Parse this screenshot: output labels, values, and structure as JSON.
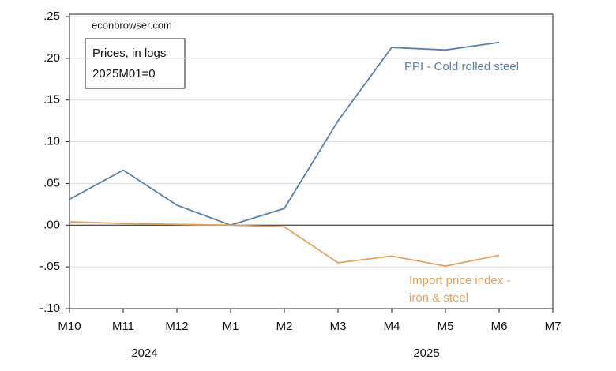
{
  "chart_data": {
    "type": "line",
    "annotations": [
      "econbrowser.com",
      "Prices, in logs",
      "2025M01=0"
    ],
    "categories": [
      "M10",
      "M11",
      "M12",
      "M1",
      "M2",
      "M3",
      "M4",
      "M5",
      "M6",
      "M7"
    ],
    "x_group_labels": [
      "2024",
      "2025"
    ],
    "series": [
      {
        "name": "PPI - Cold rolled steel",
        "color": "#5a7fa8",
        "values": [
          0.031,
          0.066,
          0.024,
          0.0,
          0.02,
          0.125,
          0.213,
          0.21,
          0.219,
          null
        ]
      },
      {
        "name": "Import price index - iron & steel",
        "color": "#e3a15e",
        "values": [
          0.004,
          0.002,
          0.001,
          0.0,
          -0.002,
          -0.045,
          -0.037,
          -0.049,
          -0.036,
          null
        ]
      }
    ],
    "ylim": [
      -0.1,
      0.25
    ],
    "yticks": [
      {
        "value": -0.1,
        "label": "-.10"
      },
      {
        "value": -0.05,
        "label": "-.05"
      },
      {
        "value": 0.0,
        "label": ".00"
      },
      {
        "value": 0.05,
        "label": ".05"
      },
      {
        "value": 0.1,
        "label": ".10"
      },
      {
        "value": 0.15,
        "label": ".15"
      },
      {
        "value": 0.2,
        "label": ".20"
      },
      {
        "value": 0.25,
        "label": ".25"
      }
    ],
    "grid": true
  }
}
